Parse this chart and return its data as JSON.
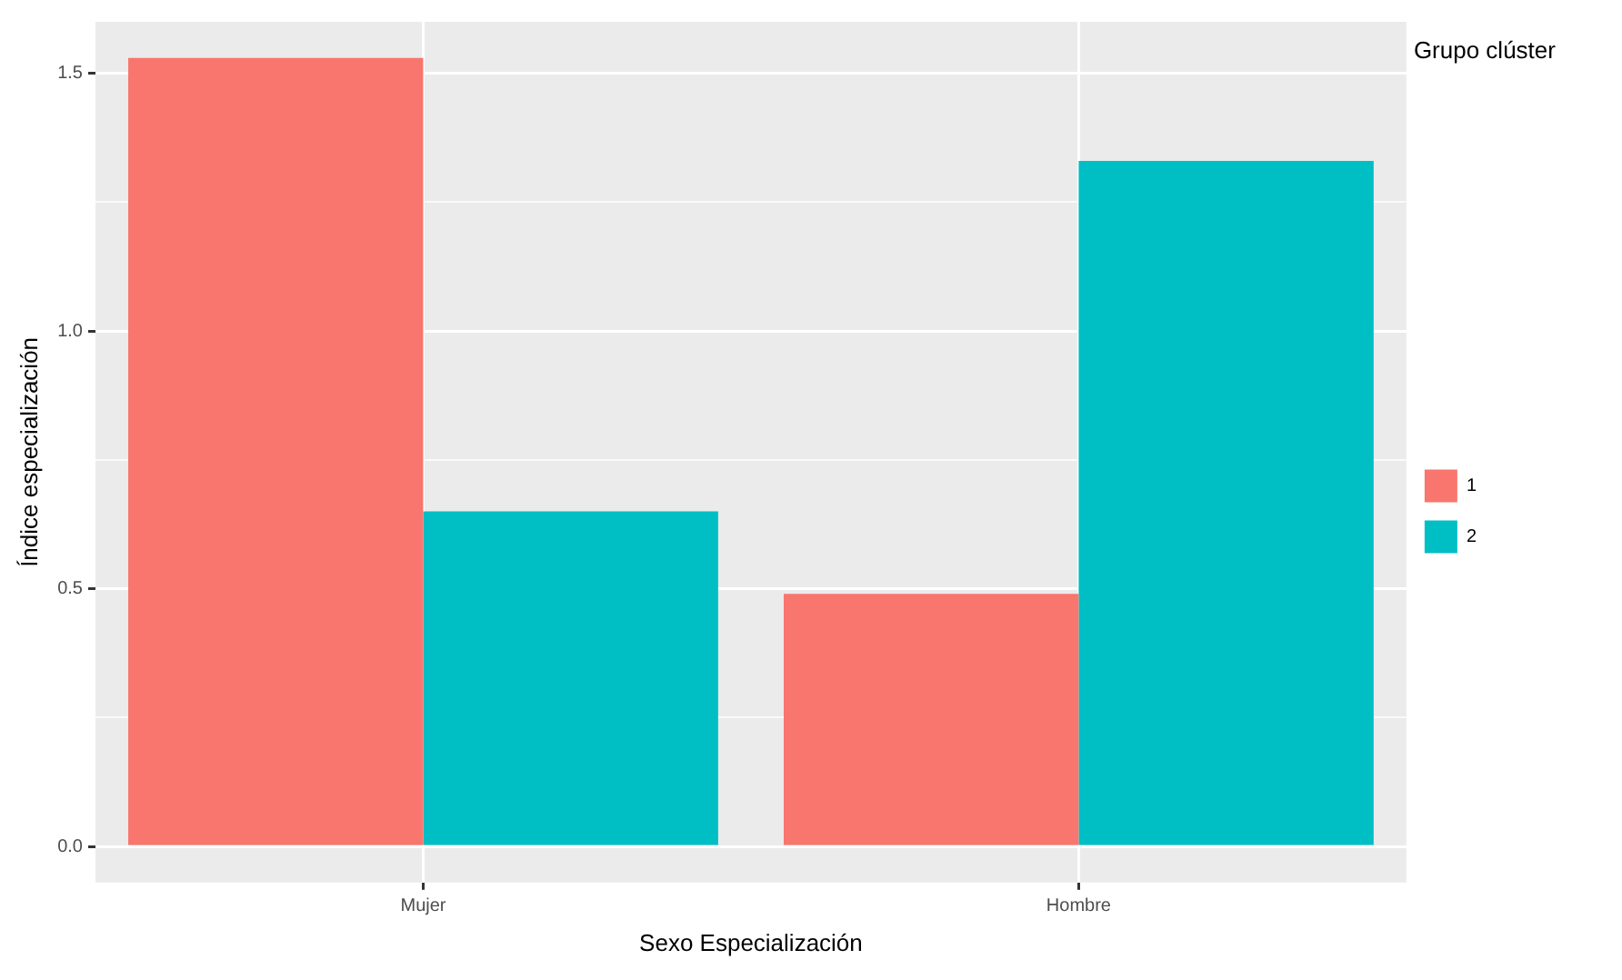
{
  "chart_data": {
    "type": "bar",
    "xlabel": "Sexo Especialización",
    "ylabel": "Índice especialización",
    "legend_title": "Grupo clúster",
    "legend": "right",
    "categories": [
      "Mujer",
      "Hombre"
    ],
    "series": [
      {
        "name": "1",
        "color": "#f8766d",
        "values": [
          1.53,
          0.49
        ]
      },
      {
        "name": "2",
        "color": "#00bfc4",
        "values": [
          0.65,
          1.33
        ]
      }
    ],
    "ylim": [
      -0.07,
      1.6
    ],
    "yticks": [
      {
        "value": 0,
        "label": "0.0"
      },
      {
        "value": 0.25,
        "label": null
      },
      {
        "value": 0.5,
        "label": "0.5"
      },
      {
        "value": 0.75,
        "label": null
      },
      {
        "value": 1,
        "label": "1.0"
      },
      {
        "value": 1.25,
        "label": null
      },
      {
        "value": 1.5,
        "label": "1.5"
      }
    ],
    "grid": true
  }
}
